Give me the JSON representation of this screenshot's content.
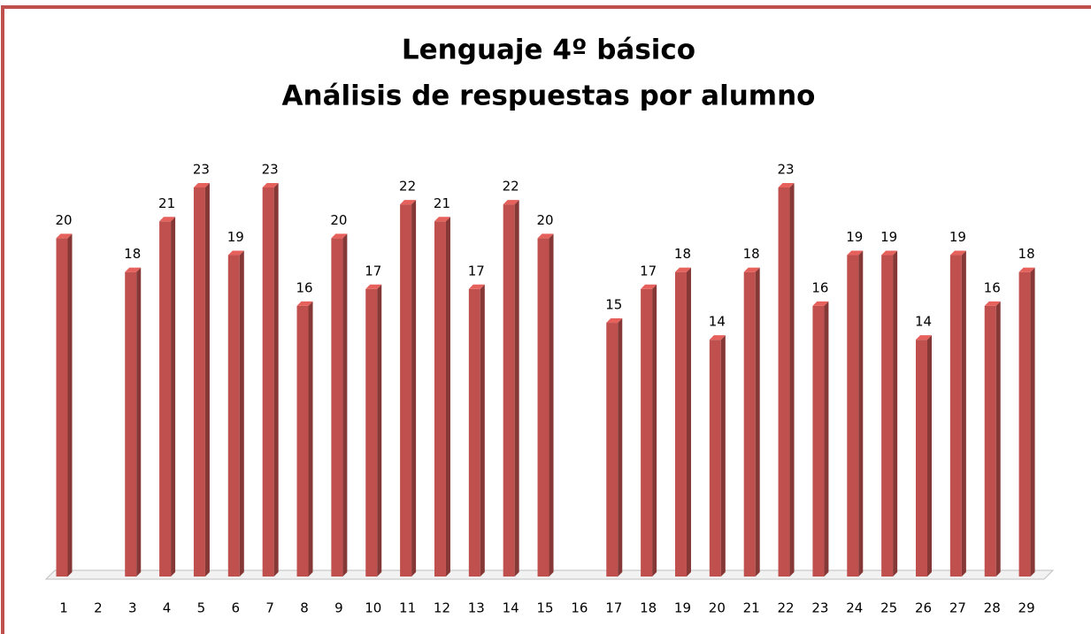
{
  "chart_data": {
    "type": "bar3d",
    "title": "Lenguaje 4º básico",
    "subtitle": "Análisis de respuestas por alumno",
    "categories": [
      "1",
      "2",
      "3",
      "4",
      "5",
      "6",
      "7",
      "8",
      "9",
      "10",
      "11",
      "12",
      "13",
      "14",
      "15",
      "16",
      "17",
      "18",
      "19",
      "20",
      "21",
      "22",
      "23",
      "24",
      "25",
      "26",
      "27",
      "28",
      "29"
    ],
    "values": [
      20,
      null,
      18,
      21,
      23,
      19,
      23,
      16,
      20,
      17,
      22,
      21,
      17,
      22,
      20,
      null,
      15,
      17,
      18,
      14,
      18,
      23,
      16,
      19,
      19,
      14,
      19,
      16,
      18
    ],
    "color": "#c0504d"
  }
}
